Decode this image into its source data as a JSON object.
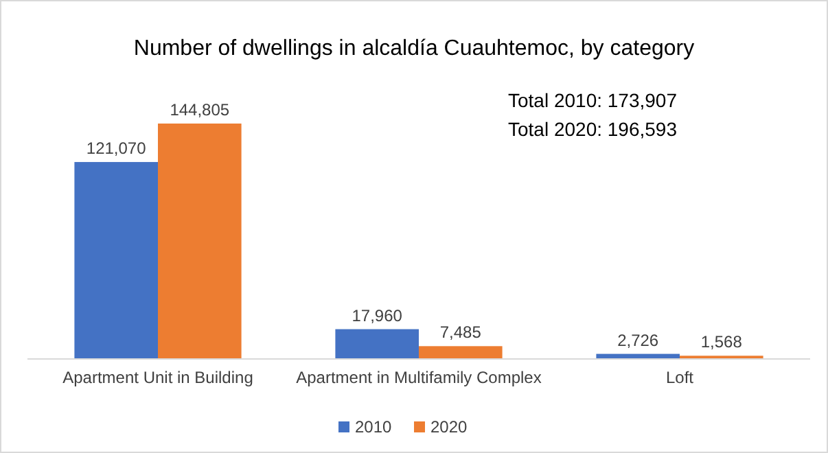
{
  "chart_data": {
    "type": "bar",
    "title": "Number of dwellings in alcaldía Cuauhtemoc, by category",
    "categories": [
      "Apartment Unit in Building",
      "Apartment in Multifamily Complex",
      "Loft"
    ],
    "series": [
      {
        "name": "2010",
        "color": "#4472c4",
        "values": [
          121070,
          17960,
          2726
        ],
        "value_labels": [
          "121,070",
          "17,960",
          "2,726"
        ]
      },
      {
        "name": "2020",
        "color": "#ed7d31",
        "values": [
          144805,
          7485,
          1568
        ],
        "value_labels": [
          "144,805",
          "7,485",
          "1,568"
        ]
      }
    ],
    "legend": "bottom",
    "annotations": [
      "Total 2010: 173,907",
      "Total 2020: 196,593"
    ]
  }
}
